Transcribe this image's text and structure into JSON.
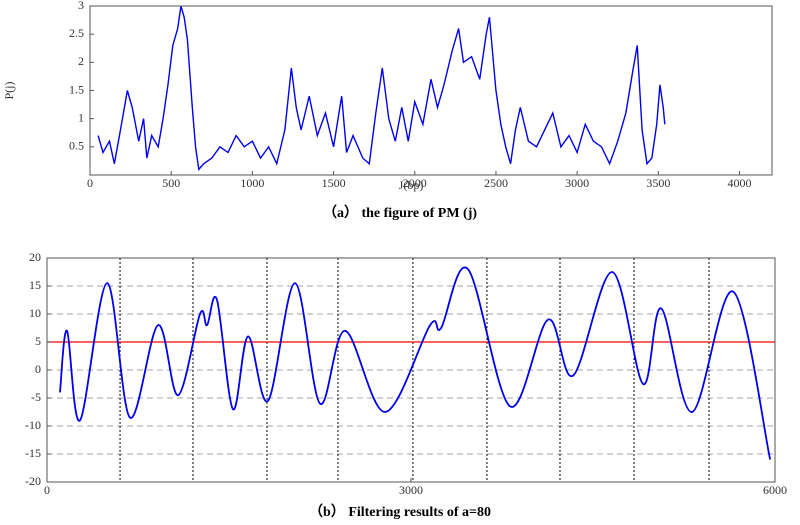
{
  "chart_data": [
    {
      "type": "line",
      "caption": "（a） the figure of PM (j)",
      "xlabel": "J(bp)",
      "ylabel": "P(j)",
      "xlim": [
        0,
        4200
      ],
      "ylim": [
        0,
        3
      ],
      "xticks": [
        0,
        500,
        1000,
        1500,
        2000,
        2500,
        3000,
        3500,
        4000
      ],
      "yticks": [
        0.5,
        1,
        1.5,
        2,
        2.5,
        3
      ],
      "grid": false,
      "smooth": false,
      "series": [
        {
          "color": "#0000ee",
          "x": [
            50,
            80,
            120,
            150,
            200,
            230,
            260,
            300,
            330,
            350,
            380,
            420,
            450,
            480,
            510,
            540,
            560,
            580,
            600,
            630,
            650,
            670,
            700,
            750,
            800,
            850,
            900,
            950,
            1000,
            1050,
            1100,
            1150,
            1200,
            1240,
            1270,
            1300,
            1350,
            1400,
            1450,
            1500,
            1550,
            1580,
            1620,
            1680,
            1720,
            1760,
            1800,
            1840,
            1880,
            1920,
            1960,
            2000,
            2050,
            2100,
            2140,
            2180,
            2230,
            2270,
            2300,
            2350,
            2400,
            2440,
            2460,
            2500,
            2530,
            2560,
            2590,
            2620,
            2650,
            2700,
            2750,
            2800,
            2850,
            2900,
            2950,
            3000,
            3050,
            3100,
            3150,
            3200,
            3250,
            3300,
            3340,
            3370,
            3400,
            3430,
            3460,
            3490,
            3510,
            3530,
            3540
          ],
          "values": [
            0.7,
            0.4,
            0.6,
            0.2,
            1.0,
            1.5,
            1.2,
            0.6,
            1.0,
            0.3,
            0.7,
            0.5,
            1.0,
            1.6,
            2.3,
            2.6,
            3.0,
            2.8,
            2.4,
            1.2,
            0.5,
            0.1,
            0.2,
            0.3,
            0.5,
            0.4,
            0.7,
            0.5,
            0.6,
            0.3,
            0.5,
            0.2,
            0.8,
            1.9,
            1.2,
            0.8,
            1.4,
            0.7,
            1.1,
            0.5,
            1.4,
            0.4,
            0.7,
            0.3,
            0.2,
            1.1,
            1.9,
            1.0,
            0.6,
            1.2,
            0.6,
            1.3,
            0.9,
            1.7,
            1.2,
            1.6,
            2.2,
            2.6,
            2.0,
            2.1,
            1.7,
            2.5,
            2.8,
            1.5,
            0.9,
            0.5,
            0.2,
            0.8,
            1.2,
            0.6,
            0.5,
            0.8,
            1.1,
            0.5,
            0.7,
            0.4,
            0.9,
            0.6,
            0.5,
            0.2,
            0.6,
            1.1,
            1.8,
            2.3,
            0.8,
            0.2,
            0.3,
            0.9,
            1.6,
            1.2,
            0.9
          ]
        }
      ]
    },
    {
      "type": "line",
      "caption": "（b） Filtering results of a=80",
      "xlim": [
        0,
        6000
      ],
      "ylim": [
        -20,
        20
      ],
      "xticks": [
        0,
        3000,
        6000
      ],
      "yticks": [
        -20,
        -15,
        -10,
        -5,
        0,
        5,
        10,
        15,
        20
      ],
      "grid": true,
      "smooth": true,
      "vlines": [
        602,
        1203,
        1813,
        2398,
        3016,
        3626,
        4228,
        4838,
        5456
      ],
      "hline": {
        "value": 5,
        "color": "#ff0000"
      },
      "series": [
        {
          "color": "#0000ee",
          "x": [
            107,
            165,
            272,
            495,
            684,
            915,
            1080,
            1261,
            1319,
            1401,
            1533,
            1657,
            1822,
            2044,
            2250,
            2457,
            2787,
            3157,
            3248,
            3470,
            3817,
            4130,
            4336,
            4658,
            4913,
            5062,
            5317,
            5655,
            5960
          ],
          "values": [
            -4,
            7,
            -9,
            15.5,
            -8.5,
            8,
            -4.5,
            10,
            8,
            12.5,
            -7,
            6,
            -5.5,
            15.5,
            -6,
            7,
            -7.5,
            8,
            7.5,
            18,
            -6.5,
            9,
            -1,
            17.5,
            -2.5,
            11,
            -7.5,
            14,
            -16
          ]
        }
      ]
    }
  ]
}
